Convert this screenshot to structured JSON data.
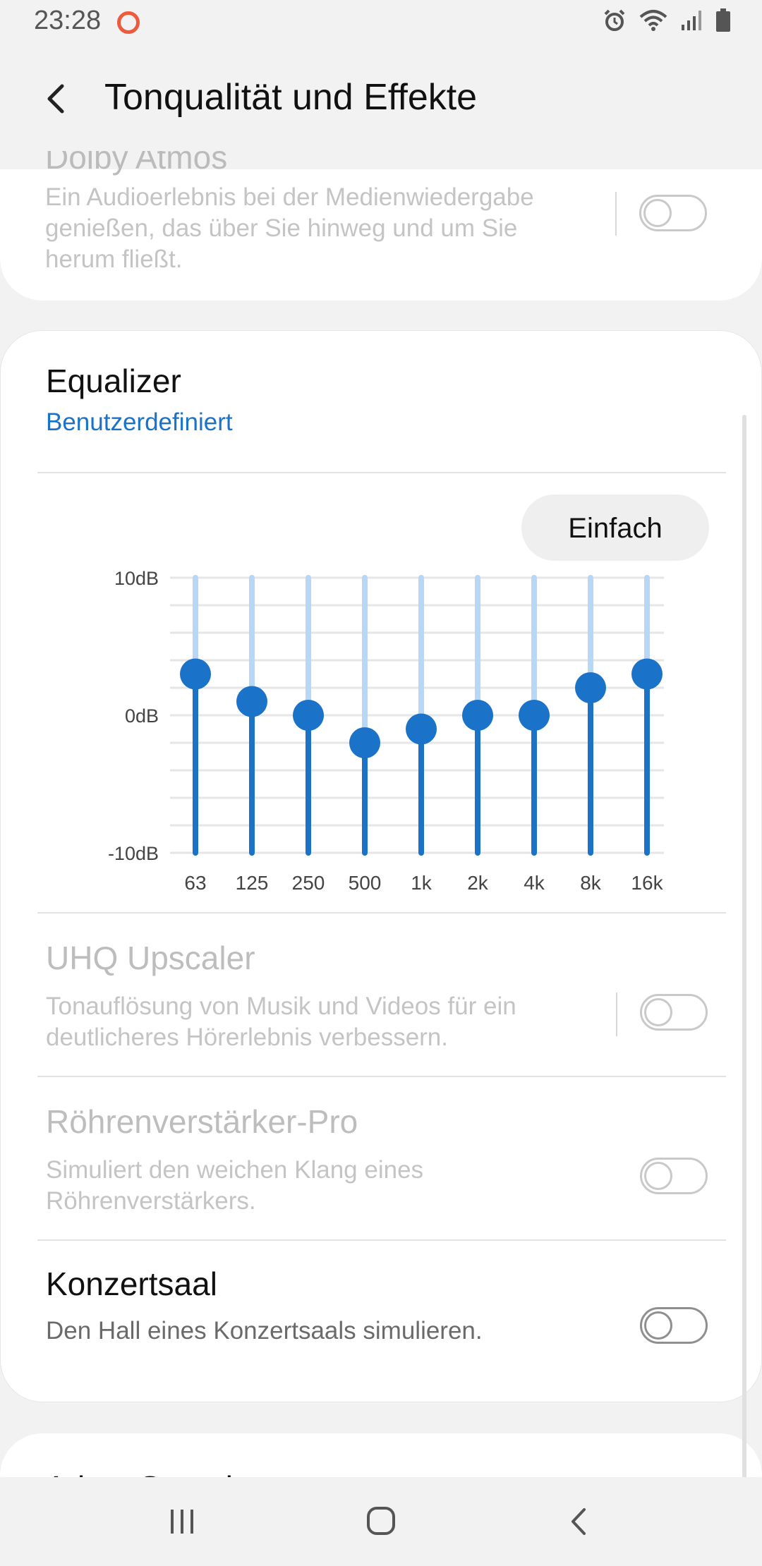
{
  "status_bar": {
    "time": "23:28",
    "icons": [
      "recording-icon",
      "alarm-icon",
      "wifi-icon",
      "signal-icon",
      "battery-icon"
    ]
  },
  "header": {
    "title": "Tonqualität und Effekte",
    "back_icon": "back-arrow-icon"
  },
  "top_card": {
    "title_partial": "Dolby Atmos",
    "description": "Ein Audioerlebnis bei der Medienwiedergabe genießen, das über Sie hinweg und um Sie herum fließt.",
    "toggle_on": false
  },
  "equalizer": {
    "title": "Equalizer",
    "preset": "Benutzerdefiniert",
    "mode_button": "Einfach",
    "accent_color": "#1a73c8",
    "track_color": "#b7d7f5"
  },
  "chart_data": {
    "type": "equalizer",
    "categories": [
      "63",
      "125",
      "250",
      "500",
      "1k",
      "2k",
      "4k",
      "8k",
      "16k"
    ],
    "values": [
      3,
      1,
      0,
      -2,
      -1,
      0,
      0,
      2,
      3
    ],
    "ylim": [
      -10,
      10
    ],
    "y_tick_labels": [
      "10dB",
      "0dB",
      "-10dB"
    ],
    "grid": true
  },
  "settings": [
    {
      "id": "uhq",
      "title": "UHQ Upscaler",
      "description": "Tonauflösung von Musik und Videos für ein deutlicheres Hörerlebnis verbessern.",
      "enabled": false,
      "toggle_on": false
    },
    {
      "id": "tube",
      "title": "Röhrenverstärker-Pro",
      "description": "Simuliert den weichen Klang eines Röhrenverstärkers.",
      "enabled": false,
      "toggle_on": false
    },
    {
      "id": "concert",
      "title": "Konzertsaal",
      "description": "Den Hall eines Konzertsaals simulieren.",
      "enabled": true,
      "toggle_on": false
    }
  ],
  "bottom_card": {
    "title_partial": "Adapt Sound"
  },
  "nav_bar": {
    "items": [
      "recent-apps-icon",
      "home-icon",
      "back-icon"
    ]
  }
}
